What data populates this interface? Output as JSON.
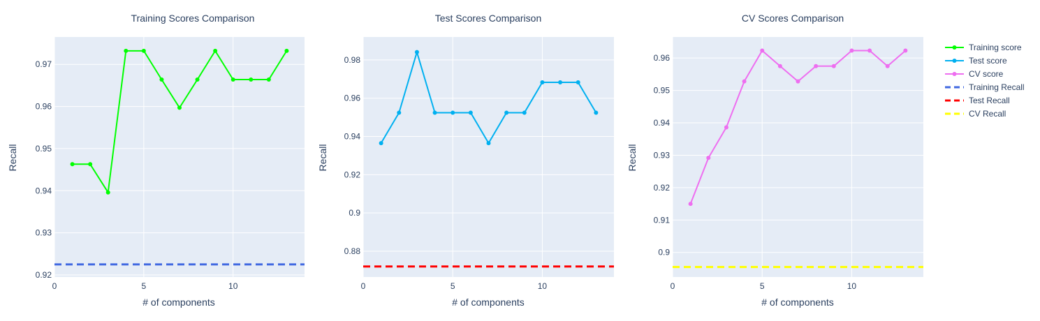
{
  "chart_data": [
    {
      "type": "line",
      "title": "Training Scores Comparison",
      "xlabel": "# of components",
      "ylabel": "Recall",
      "xlim": [
        0,
        14
      ],
      "ylim": [
        0.9195,
        0.9765
      ],
      "xticks": [
        0,
        5,
        10
      ],
      "yticks": [
        0.92,
        0.93,
        0.94,
        0.95,
        0.96,
        0.97
      ],
      "ytick_labels": [
        "0.92",
        "0.93",
        "0.94",
        "0.95",
        "0.96",
        "0.97"
      ],
      "grid": true,
      "series": [
        {
          "name": "Training score",
          "color": "#00ff00",
          "x": [
            1,
            2,
            3,
            4,
            5,
            6,
            7,
            8,
            9,
            10,
            11,
            12,
            13
          ],
          "y": [
            0.9463,
            0.9463,
            0.9396,
            0.9732,
            0.9732,
            0.9664,
            0.9597,
            0.9664,
            0.9732,
            0.9664,
            0.9664,
            0.9664,
            0.9732
          ]
        }
      ],
      "reference_line": {
        "name": "Training Recall",
        "color": "#4169e1",
        "y": 0.9225,
        "dash": "dashed"
      }
    },
    {
      "type": "line",
      "title": "Test Scores Comparison",
      "xlabel": "# of components",
      "ylabel": "Recall",
      "xlim": [
        0,
        14
      ],
      "ylim": [
        0.8665,
        0.992
      ],
      "xticks": [
        0,
        5,
        10
      ],
      "yticks": [
        0.88,
        0.9,
        0.92,
        0.94,
        0.96,
        0.98
      ],
      "ytick_labels": [
        "0.88",
        "0.9",
        "0.92",
        "0.94",
        "0.96",
        "0.98"
      ],
      "grid": true,
      "series": [
        {
          "name": "Test score",
          "color": "#00b0f0",
          "x": [
            1,
            2,
            3,
            4,
            5,
            6,
            7,
            8,
            9,
            10,
            11,
            12,
            13
          ],
          "y": [
            0.9365,
            0.9524,
            0.9841,
            0.9524,
            0.9524,
            0.9524,
            0.9365,
            0.9524,
            0.9524,
            0.9683,
            0.9683,
            0.9683,
            0.9524
          ]
        }
      ],
      "reference_line": {
        "name": "Test Recall",
        "color": "#ff0000",
        "y": 0.872,
        "dash": "dashed"
      }
    },
    {
      "type": "line",
      "title": "CV Scores Comparison",
      "xlabel": "# of components",
      "ylabel": "Recall",
      "xlim": [
        0,
        14
      ],
      "ylim": [
        0.8924,
        0.9665
      ],
      "xticks": [
        0,
        5,
        10
      ],
      "yticks": [
        0.9,
        0.91,
        0.92,
        0.93,
        0.94,
        0.95,
        0.96
      ],
      "ytick_labels": [
        "0.9",
        "0.91",
        "0.92",
        "0.93",
        "0.94",
        "0.95",
        "0.96"
      ],
      "grid": true,
      "series": [
        {
          "name": "CV score",
          "color": "#ee6ef0",
          "x": [
            1,
            2,
            3,
            4,
            5,
            6,
            7,
            8,
            9,
            10,
            11,
            12,
            13
          ],
          "y": [
            0.915,
            0.9292,
            0.9386,
            0.9528,
            0.9623,
            0.9575,
            0.9528,
            0.9575,
            0.9575,
            0.9623,
            0.9623,
            0.9575,
            0.9623
          ]
        }
      ],
      "reference_line": {
        "name": "CV Recall",
        "color": "#ffff00",
        "y": 0.8955,
        "dash": "dashed"
      }
    }
  ],
  "legend": {
    "position": "top-right",
    "items": [
      {
        "label": "Training score",
        "color": "#00ff00",
        "style": "line-marker"
      },
      {
        "label": "Test score",
        "color": "#00b0f0",
        "style": "line-marker"
      },
      {
        "label": "CV score",
        "color": "#ee6ef0",
        "style": "line-marker"
      },
      {
        "label": "Training Recall",
        "color": "#4169e1",
        "style": "dashed"
      },
      {
        "label": "Test Recall",
        "color": "#ff0000",
        "style": "dashed"
      },
      {
        "label": "CV Recall",
        "color": "#ffff00",
        "style": "dashed"
      }
    ]
  },
  "colors": {
    "plot_background": "#e5ecf6",
    "grid": "#ffffff",
    "text": "#2a3f5f"
  }
}
